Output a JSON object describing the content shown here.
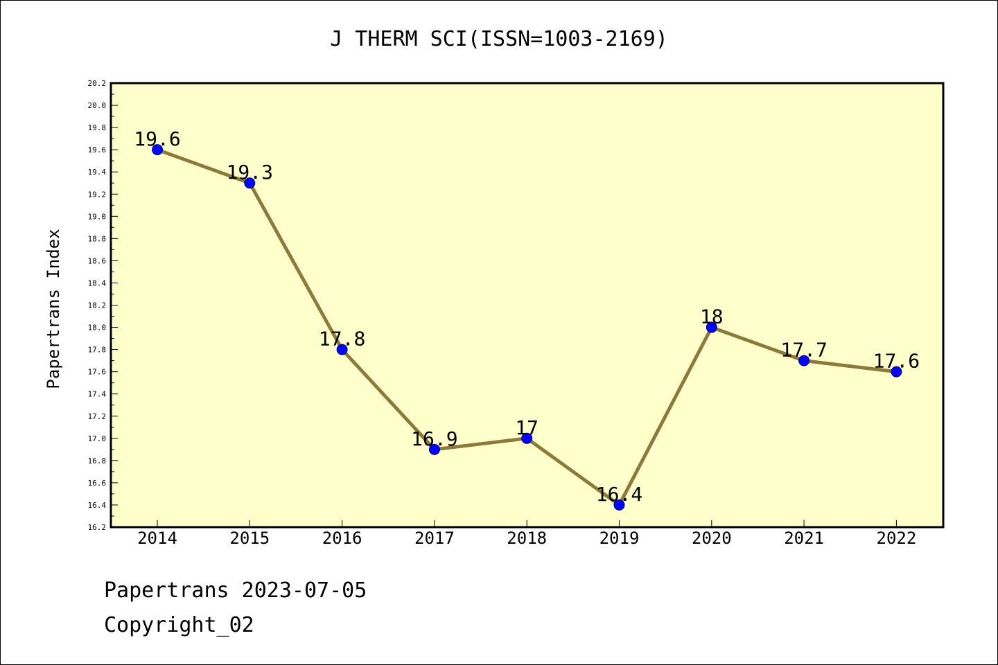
{
  "chart_data": {
    "type": "line",
    "title": "J THERM SCI(ISSN=1003-2169)",
    "ylabel": "Papertrans Index",
    "xlabel": "",
    "categories": [
      "2014",
      "2015",
      "2016",
      "2017",
      "2018",
      "2019",
      "2020",
      "2021",
      "2022"
    ],
    "values": [
      19.6,
      19.3,
      17.8,
      16.9,
      17.0,
      16.4,
      18.0,
      17.7,
      17.6
    ],
    "data_labels": [
      "19.6",
      "19.3",
      "17.8",
      "16.9",
      "17",
      "16.4",
      "18",
      "17.7",
      "17.6"
    ],
    "ylim": [
      16.2,
      20.2
    ],
    "yticks": [
      "16.2",
      "16.4",
      "16.6",
      "16.8",
      "17.0",
      "17.2",
      "17.4",
      "17.6",
      "17.8",
      "18.0",
      "18.2",
      "18.4",
      "18.6",
      "18.8",
      "19.0",
      "19.2",
      "19.4",
      "19.6",
      "19.8",
      "20.0",
      "20.2"
    ],
    "grid": false,
    "legend": "none",
    "colors": {
      "plot_background": "#ffffcc",
      "line": "#8b7a3a",
      "marker": "#0000ff",
      "marker_edge": "#000080"
    }
  },
  "footer": {
    "line1": "Papertrans 2023-07-05",
    "line2": "Copyright_02"
  }
}
